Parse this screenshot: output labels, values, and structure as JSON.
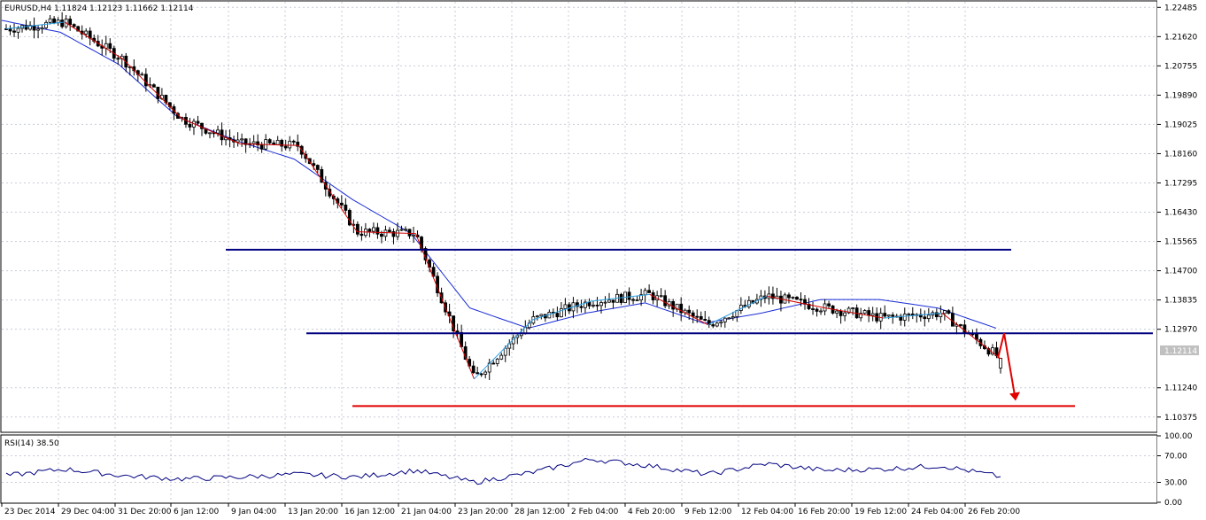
{
  "header": {
    "symbol_text": "EURUSD,H4  1.11824 1.12123 1.11662 1.12114"
  },
  "rsi": {
    "label": "RSI(14) 38.50",
    "axis_labels": [
      "100.00",
      "70.00",
      "30.00",
      "0.00"
    ]
  },
  "price_axis": {
    "labels": [
      "1.22485",
      "1.21620",
      "1.20755",
      "1.19890",
      "1.19025",
      "1.18160",
      "1.17295",
      "1.16430",
      "1.15565",
      "1.14700",
      "1.13835",
      "1.12970",
      "1.12114",
      "1.11240",
      "1.10375"
    ],
    "current_price_label": "1.12114"
  },
  "time_axis": {
    "labels": [
      "23 Dec 2014",
      "29 Dec 04:00",
      "31 Dec 20:00",
      "6 Jan 12:00",
      "9 Jan 04:00",
      "13 Jan 20:00",
      "16 Jan 12:00",
      "21 Jan 04:00",
      "23 Jan 20:00",
      "28 Jan 12:00",
      "2 Feb 04:00",
      "4 Feb 20:00",
      "9 Feb 12:00",
      "12 Feb 04:00",
      "16 Feb 20:00",
      "19 Feb 12:00",
      "24 Feb 04:00",
      "26 Feb 20:00"
    ]
  },
  "colors": {
    "candle": "#000000",
    "moving_average": "#1a2dd6",
    "zigzag_down": "#d40000",
    "zigzag_up": "#2aa0e6",
    "channel_lines": "#000080",
    "target_line": "#e00000",
    "arrow": "#e00000",
    "rsi_line": "#000080",
    "grid": "#c8ccd8"
  },
  "chart_data": {
    "type": "line",
    "title": "EURUSD,H4",
    "ylim": [
      1.0995,
      1.2265
    ],
    "ohlc_last": {
      "open": 1.11824,
      "high": 1.12123,
      "low": 1.11662,
      "close": 1.12114
    },
    "price_path": {
      "x": [
        "23 Dec 2014",
        "29 Dec 04:00",
        "31 Dec 20:00",
        "6 Jan 12:00",
        "9 Jan 04:00",
        "13 Jan 20:00",
        "16 Jan 12:00",
        "21 Jan 04:00",
        "23 Jan 20:00",
        "28 Jan 12:00",
        "2 Feb 04:00",
        "4 Feb 20:00",
        "9 Feb 12:00",
        "12 Feb 04:00",
        "16 Feb 20:00",
        "19 Feb 12:00",
        "24 Feb 04:00",
        "26 Feb 20:00"
      ],
      "y": [
        1.2185,
        1.2205,
        1.2095,
        1.192,
        1.1845,
        1.184,
        1.1585,
        1.158,
        1.115,
        1.1325,
        1.138,
        1.14,
        1.131,
        1.1395,
        1.136,
        1.133,
        1.1345,
        1.121
      ]
    },
    "moving_average": {
      "x": [
        "23 Dec 2014",
        "29 Dec 04:00",
        "31 Dec 20:00",
        "6 Jan 12:00",
        "9 Jan 04:00",
        "13 Jan 20:00",
        "16 Jan 12:00",
        "21 Jan 04:00",
        "23 Jan 20:00",
        "28 Jan 12:00",
        "2 Feb 04:00",
        "4 Feb 20:00",
        "9 Feb 12:00",
        "12 Feb 04:00",
        "16 Feb 20:00",
        "19 Feb 12:00",
        "24 Feb 04:00",
        "26 Feb 20:00"
      ],
      "y": [
        1.221,
        1.2175,
        1.208,
        1.1925,
        1.1855,
        1.18,
        1.168,
        1.158,
        1.136,
        1.13,
        1.1345,
        1.1375,
        1.1315,
        1.1345,
        1.1385,
        1.1385,
        1.136,
        1.13
      ]
    },
    "horizontal_levels": [
      {
        "name": "resistance",
        "y": 1.1532
      },
      {
        "name": "support",
        "y": 1.1285
      },
      {
        "name": "target",
        "y": 1.107
      }
    ],
    "rsi": {
      "ylim": [
        0,
        100
      ],
      "levels": [
        70,
        30
      ],
      "last": 38.5,
      "x": [
        "23 Dec 2014",
        "29 Dec 04:00",
        "31 Dec 20:00",
        "6 Jan 12:00",
        "9 Jan 04:00",
        "13 Jan 20:00",
        "16 Jan 12:00",
        "21 Jan 04:00",
        "23 Jan 20:00",
        "28 Jan 12:00",
        "2 Feb 04:00",
        "4 Feb 20:00",
        "9 Feb 12:00",
        "12 Feb 04:00",
        "16 Feb 20:00",
        "19 Feb 12:00",
        "24 Feb 04:00",
        "26 Feb 20:00"
      ],
      "y": [
        40,
        50,
        40,
        35,
        38,
        42,
        38,
        48,
        30,
        45,
        65,
        55,
        42,
        58,
        48,
        50,
        55,
        38.5
      ]
    }
  }
}
